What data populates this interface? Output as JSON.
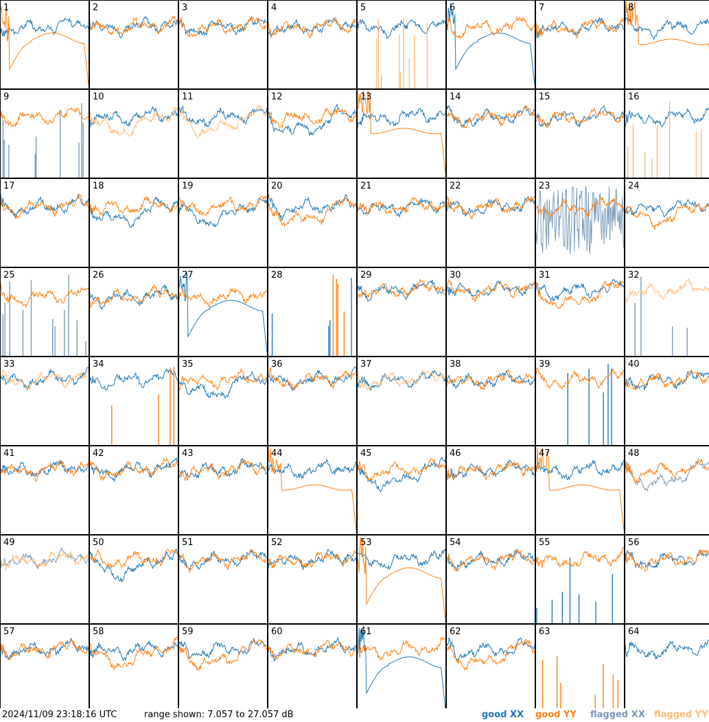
{
  "chart_data": {
    "type": "line",
    "footer": {
      "timestamp": "2024/11/09 23:18:16 UTC",
      "range": "range shown: 7.057 to 27.057 dB",
      "legend": {
        "good_xx": "good XX",
        "good_yy": "good YY",
        "flagged_xx": "flagged XX",
        "flagged_yy": "flagged YY"
      }
    },
    "ylim": [
      7.057,
      27.057
    ],
    "colors": {
      "good_xx": "#1f77b4",
      "good_yy": "#ff7f0e",
      "flagged_xx": "#7a9ab8",
      "flagged_yy": "#ffbb78"
    },
    "grid": {
      "rows": 8,
      "cols": 8
    },
    "panels": [
      {
        "label": "1",
        "xx": "good",
        "yy": "good",
        "xx_shape": "normal",
        "yy_shape": "dip-sag"
      },
      {
        "label": "2",
        "xx": "good",
        "yy": "good",
        "xx_shape": "normal",
        "yy_shape": "normal"
      },
      {
        "label": "3",
        "xx": "good",
        "yy": "good",
        "xx_shape": "normal",
        "yy_shape": "normal"
      },
      {
        "label": "4",
        "xx": "good",
        "yy": "good",
        "xx_shape": "normal",
        "yy_shape": "normal"
      },
      {
        "label": "5",
        "xx": "good",
        "yy": "flagged",
        "xx_shape": "normal",
        "yy_shape": "spikes"
      },
      {
        "label": "6",
        "xx": "good",
        "yy": "good",
        "xx_shape": "dip-sag",
        "yy_shape": "normal"
      },
      {
        "label": "7",
        "xx": "good",
        "yy": "good",
        "xx_shape": "normal",
        "yy_shape": "normal"
      },
      {
        "label": "8",
        "xx": "good",
        "yy": "good",
        "xx_shape": "normal",
        "yy_shape": "sag"
      },
      {
        "label": "9",
        "xx": "flagged",
        "yy": "good",
        "xx_shape": "spikes",
        "yy_shape": "normal"
      },
      {
        "label": "10",
        "xx": "good",
        "yy": "flagged",
        "xx_shape": "normal",
        "yy_shape": "low"
      },
      {
        "label": "11",
        "xx": "good",
        "yy": "flagged",
        "xx_shape": "normal",
        "yy_shape": "low"
      },
      {
        "label": "12",
        "xx": "good",
        "yy": "good",
        "xx_shape": "low",
        "yy_shape": "normal"
      },
      {
        "label": "13",
        "xx": "good",
        "yy": "good",
        "xx_shape": "normal",
        "yy_shape": "sag"
      },
      {
        "label": "14",
        "xx": "good",
        "yy": "good",
        "xx_shape": "normal",
        "yy_shape": "normal"
      },
      {
        "label": "15",
        "xx": "good",
        "yy": "good",
        "xx_shape": "normal",
        "yy_shape": "normal"
      },
      {
        "label": "16",
        "xx": "good",
        "yy": "flagged",
        "xx_shape": "normal",
        "yy_shape": "spikes"
      },
      {
        "label": "17",
        "xx": "good",
        "yy": "good",
        "xx_shape": "normal",
        "yy_shape": "normal"
      },
      {
        "label": "18",
        "xx": "good",
        "yy": "good",
        "xx_shape": "low",
        "yy_shape": "normal"
      },
      {
        "label": "19",
        "xx": "good",
        "yy": "good",
        "xx_shape": "low",
        "yy_shape": "normal"
      },
      {
        "label": "20",
        "xx": "good",
        "yy": "good",
        "xx_shape": "normal",
        "yy_shape": "low"
      },
      {
        "label": "21",
        "xx": "good",
        "yy": "good",
        "xx_shape": "normal",
        "yy_shape": "normal"
      },
      {
        "label": "22",
        "xx": "good",
        "yy": "good",
        "xx_shape": "normal",
        "yy_shape": "normal"
      },
      {
        "label": "23",
        "xx": "flagged",
        "yy": "good",
        "xx_shape": "noise",
        "yy_shape": "normal"
      },
      {
        "label": "24",
        "xx": "good",
        "yy": "good",
        "xx_shape": "normal",
        "yy_shape": "low"
      },
      {
        "label": "25",
        "xx": "flagged",
        "yy": "good",
        "xx_shape": "spikes",
        "yy_shape": "normal"
      },
      {
        "label": "26",
        "xx": "good",
        "yy": "good",
        "xx_shape": "normal",
        "yy_shape": "normal"
      },
      {
        "label": "27",
        "xx": "good",
        "yy": "good",
        "xx_shape": "dip-sag",
        "yy_shape": "normal"
      },
      {
        "label": "28",
        "xx": "good",
        "yy": "good",
        "xx_shape": "spikes",
        "yy_shape": "spikes"
      },
      {
        "label": "29",
        "xx": "good",
        "yy": "good",
        "xx_shape": "normal",
        "yy_shape": "normal"
      },
      {
        "label": "30",
        "xx": "good",
        "yy": "good",
        "xx_shape": "normal",
        "yy_shape": "normal"
      },
      {
        "label": "31",
        "xx": "good",
        "yy": "good",
        "xx_shape": "normal",
        "yy_shape": "low"
      },
      {
        "label": "32",
        "xx": "flagged",
        "yy": "flagged",
        "xx_shape": "spikes",
        "yy_shape": "normal"
      },
      {
        "label": "33",
        "xx": "good",
        "yy": "flagged",
        "xx_shape": "normal",
        "yy_shape": "normal"
      },
      {
        "label": "34",
        "xx": "good",
        "yy": "good",
        "xx_shape": "normal",
        "yy_shape": "spikes"
      },
      {
        "label": "35",
        "xx": "good",
        "yy": "good",
        "xx_shape": "low",
        "yy_shape": "normal"
      },
      {
        "label": "36",
        "xx": "good",
        "yy": "good",
        "xx_shape": "normal",
        "yy_shape": "normal"
      },
      {
        "label": "37",
        "xx": "good",
        "yy": "flagged",
        "xx_shape": "normal",
        "yy_shape": "normal"
      },
      {
        "label": "38",
        "xx": "good",
        "yy": "good",
        "xx_shape": "normal",
        "yy_shape": "normal"
      },
      {
        "label": "39",
        "xx": "good",
        "yy": "good",
        "xx_shape": "spikes",
        "yy_shape": "normal"
      },
      {
        "label": "40",
        "xx": "good",
        "yy": "good",
        "xx_shape": "normal",
        "yy_shape": "normal"
      },
      {
        "label": "41",
        "xx": "good",
        "yy": "good",
        "xx_shape": "normal",
        "yy_shape": "normal"
      },
      {
        "label": "42",
        "xx": "good",
        "yy": "good",
        "xx_shape": "normal",
        "yy_shape": "normal"
      },
      {
        "label": "43",
        "xx": "good",
        "yy": "good",
        "xx_shape": "normal",
        "yy_shape": "normal"
      },
      {
        "label": "44",
        "xx": "good",
        "yy": "good",
        "xx_shape": "normal",
        "yy_shape": "sag"
      },
      {
        "label": "45",
        "xx": "good",
        "yy": "good",
        "xx_shape": "low",
        "yy_shape": "normal"
      },
      {
        "label": "46",
        "xx": "good",
        "yy": "good",
        "xx_shape": "normal",
        "yy_shape": "normal"
      },
      {
        "label": "47",
        "xx": "good",
        "yy": "good",
        "xx_shape": "normal",
        "yy_shape": "sag"
      },
      {
        "label": "48",
        "xx": "flagged",
        "yy": "good",
        "xx_shape": "low",
        "yy_shape": "normal"
      },
      {
        "label": "49",
        "xx": "flagged",
        "yy": "flagged",
        "xx_shape": "normal",
        "yy_shape": "normal"
      },
      {
        "label": "50",
        "xx": "good",
        "yy": "good",
        "xx_shape": "low",
        "yy_shape": "normal"
      },
      {
        "label": "51",
        "xx": "good",
        "yy": "good",
        "xx_shape": "normal",
        "yy_shape": "normal"
      },
      {
        "label": "52",
        "xx": "good",
        "yy": "good",
        "xx_shape": "normal",
        "yy_shape": "normal"
      },
      {
        "label": "53",
        "xx": "good",
        "yy": "good",
        "xx_shape": "normal",
        "yy_shape": "dip-sag"
      },
      {
        "label": "54",
        "xx": "good",
        "yy": "good",
        "xx_shape": "normal",
        "yy_shape": "normal"
      },
      {
        "label": "55",
        "xx": "good",
        "yy": "good",
        "xx_shape": "spikes",
        "yy_shape": "normal"
      },
      {
        "label": "56",
        "xx": "good",
        "yy": "good",
        "xx_shape": "normal",
        "yy_shape": "normal"
      },
      {
        "label": "57",
        "xx": "good",
        "yy": "good",
        "xx_shape": "normal",
        "yy_shape": "normal"
      },
      {
        "label": "58",
        "xx": "good",
        "yy": "good",
        "xx_shape": "normal",
        "yy_shape": "low"
      },
      {
        "label": "59",
        "xx": "good",
        "yy": "good",
        "xx_shape": "normal",
        "yy_shape": "low"
      },
      {
        "label": "60",
        "xx": "good",
        "yy": "good",
        "xx_shape": "normal",
        "yy_shape": "normal"
      },
      {
        "label": "61",
        "xx": "good",
        "yy": "good",
        "xx_shape": "dip-sag",
        "yy_shape": "normal"
      },
      {
        "label": "62",
        "xx": "good",
        "yy": "good",
        "xx_shape": "normal",
        "yy_shape": "low"
      },
      {
        "label": "63",
        "xx": "good",
        "yy": "good",
        "xx_shape": "none",
        "yy_shape": "spikes"
      },
      {
        "label": "64",
        "xx": "good",
        "yy": "good",
        "xx_shape": "normal",
        "yy_shape": "none"
      }
    ]
  }
}
